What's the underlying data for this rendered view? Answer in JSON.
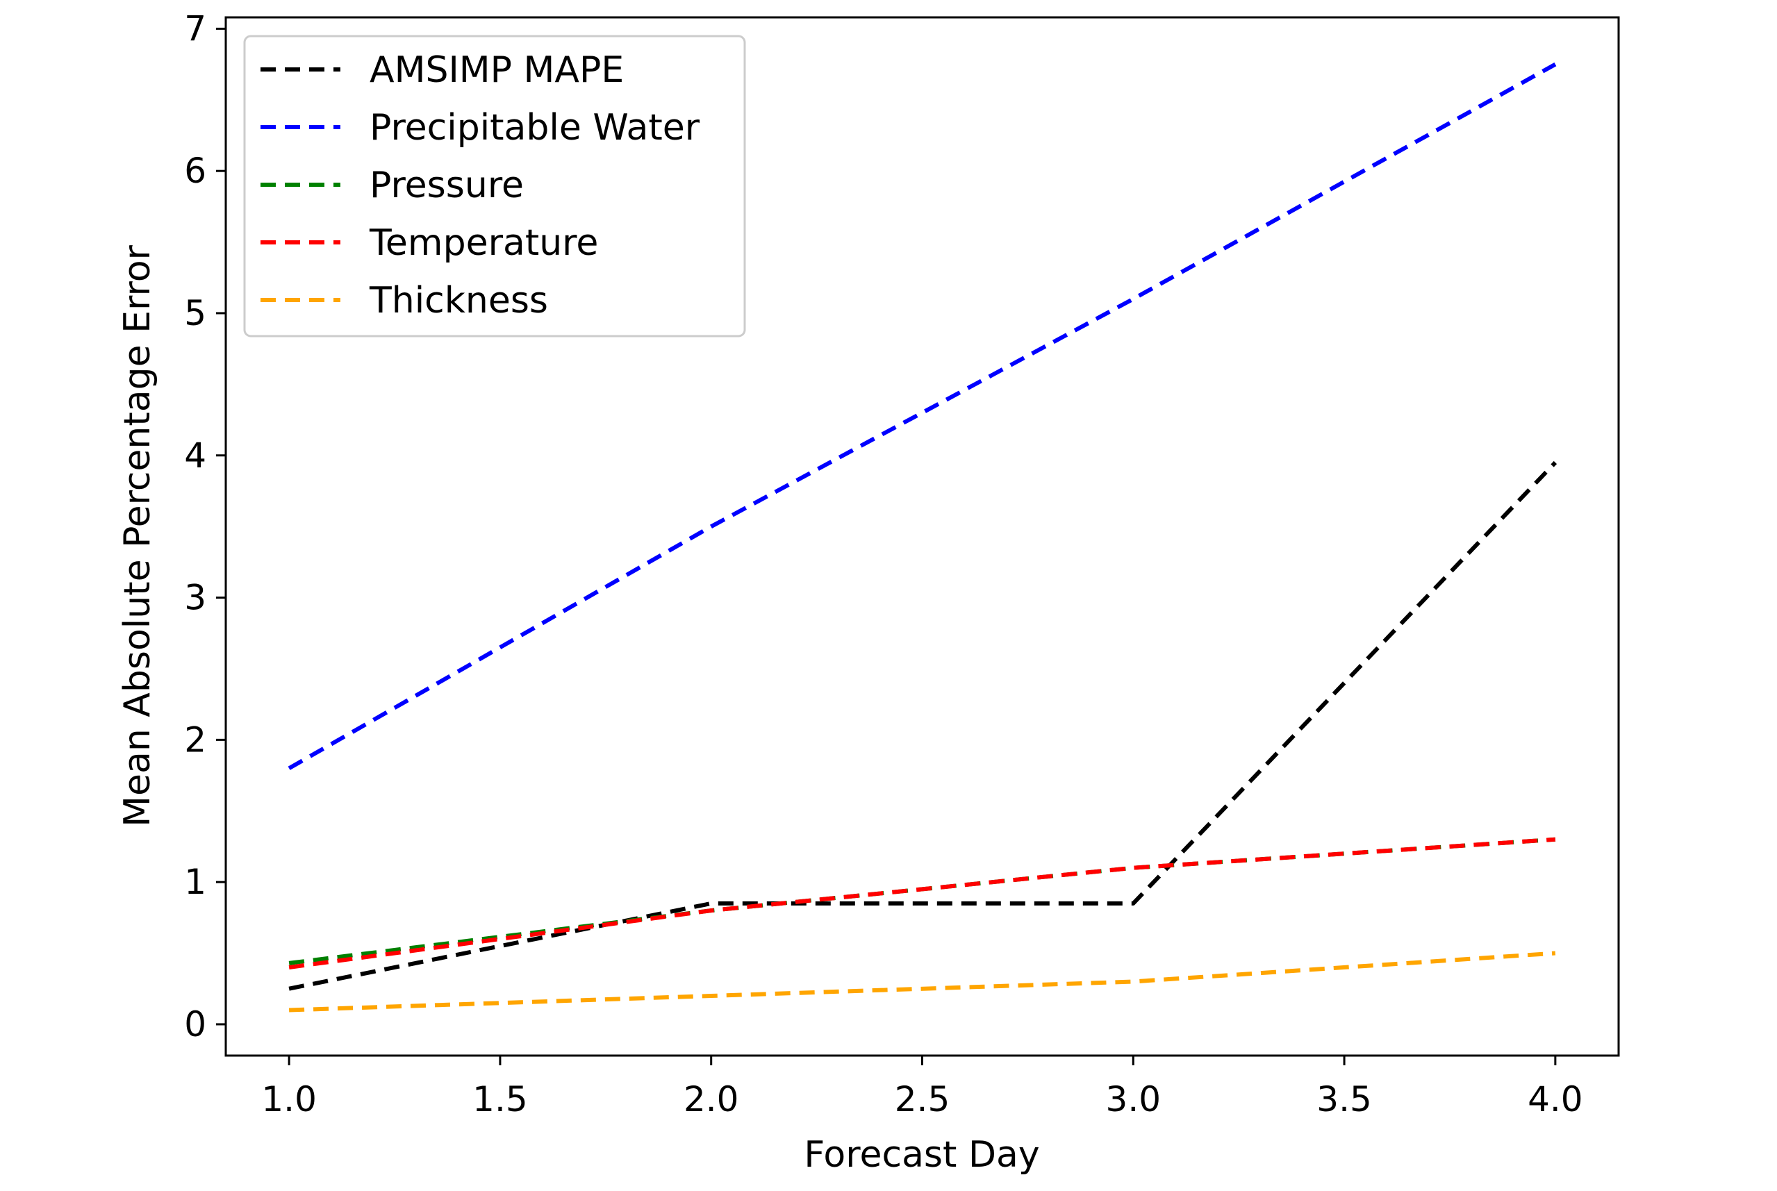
{
  "chart_data": {
    "type": "line",
    "title": "",
    "xlabel": "Forecast Day",
    "ylabel": "Mean Absolute Percentage Error",
    "xlim": [
      0.85,
      4.15
    ],
    "ylim": [
      -0.22,
      7.08
    ],
    "xticks": [
      1.0,
      1.5,
      2.0,
      2.5,
      3.0,
      3.5,
      4.0
    ],
    "xtick_labels": [
      "1.0",
      "1.5",
      "2.0",
      "2.5",
      "3.0",
      "3.5",
      "4.0"
    ],
    "yticks": [
      0,
      1,
      2,
      3,
      4,
      5,
      6,
      7
    ],
    "ytick_labels": [
      "0",
      "1",
      "2",
      "3",
      "4",
      "5",
      "6",
      "7"
    ],
    "grid": false,
    "legend_position": "upper-left",
    "line_style": "dashed",
    "x": [
      1.0,
      2.0,
      3.0,
      4.0
    ],
    "series": [
      {
        "name": "AMSIMP MAPE",
        "color": "#000000",
        "values": [
          0.25,
          0.85,
          0.85,
          3.95
        ]
      },
      {
        "name": "Precipitable Water",
        "color": "#0000ff",
        "values": [
          1.8,
          3.5,
          5.1,
          6.75
        ]
      },
      {
        "name": "Pressure",
        "color": "#008000",
        "values": [
          0.43,
          0.8,
          1.1,
          1.3
        ]
      },
      {
        "name": "Temperature",
        "color": "#ff0000",
        "values": [
          0.4,
          0.8,
          1.1,
          1.3
        ]
      },
      {
        "name": "Thickness",
        "color": "#ffa500",
        "values": [
          0.1,
          0.2,
          0.3,
          0.5
        ]
      }
    ]
  }
}
